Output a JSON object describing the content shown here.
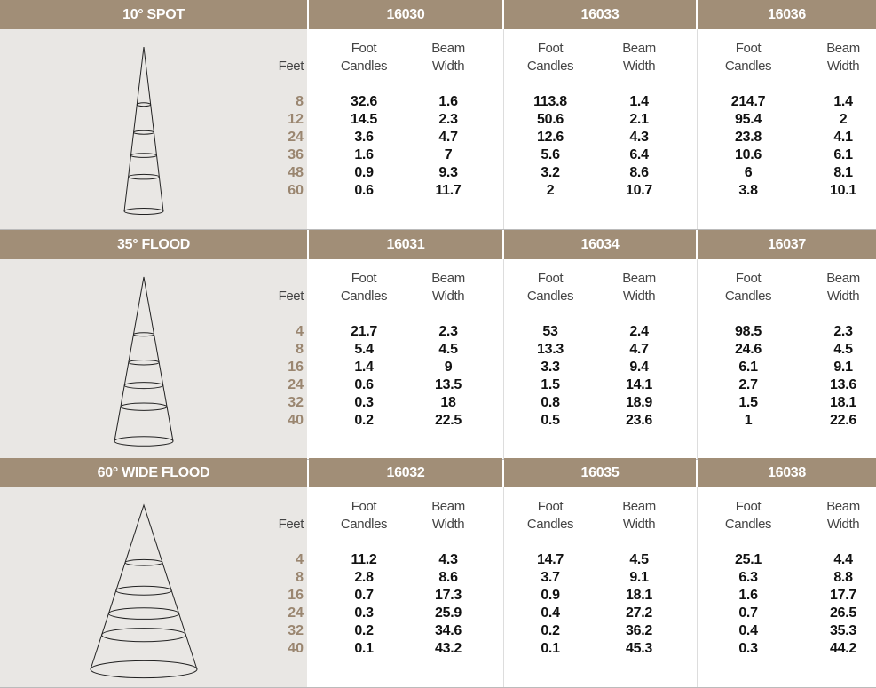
{
  "sections": [
    {
      "title": "10° SPOT",
      "feet_label": "Feet",
      "feet": [
        8,
        12,
        24,
        36,
        48,
        60
      ],
      "products": [
        {
          "model": "16030",
          "headers": [
            "Foot Candles",
            "Beam Width"
          ],
          "foot_candles": [
            32.6,
            14.5,
            3.6,
            1.6,
            0.9,
            0.6
          ],
          "beam_width": [
            1.6,
            2.3,
            4.7,
            7,
            9.3,
            11.7
          ]
        },
        {
          "model": "16033",
          "headers": [
            "Foot Candles",
            "Beam Width"
          ],
          "foot_candles": [
            113.8,
            50.6,
            12.6,
            5.6,
            3.2,
            2
          ],
          "beam_width": [
            1.4,
            2.1,
            4.3,
            6.4,
            8.6,
            10.7
          ]
        },
        {
          "model": "16036",
          "headers": [
            "Foot Candles",
            "Beam Width"
          ],
          "foot_candles": [
            214.7,
            95.4,
            23.8,
            10.6,
            6,
            3.8
          ],
          "beam_width": [
            1.4,
            2,
            4.1,
            6.1,
            8.1,
            10.1
          ]
        }
      ]
    },
    {
      "title": "35° FLOOD",
      "feet_label": "Feet",
      "feet": [
        4,
        8,
        16,
        24,
        32,
        40
      ],
      "products": [
        {
          "model": "16031",
          "headers": [
            "Foot Candles",
            "Beam Width"
          ],
          "foot_candles": [
            21.7,
            5.4,
            1.4,
            0.6,
            0.3,
            0.2
          ],
          "beam_width": [
            2.3,
            4.5,
            9,
            13.5,
            18,
            22.5
          ]
        },
        {
          "model": "16034",
          "headers": [
            "Foot Candles",
            "Beam Width"
          ],
          "foot_candles": [
            53,
            13.3,
            3.3,
            1.5,
            0.8,
            0.5
          ],
          "beam_width": [
            2.4,
            4.7,
            9.4,
            14.1,
            18.9,
            23.6
          ]
        },
        {
          "model": "16037",
          "headers": [
            "Foot Candles",
            "Beam Width"
          ],
          "foot_candles": [
            98.5,
            24.6,
            6.1,
            2.7,
            1.5,
            1
          ],
          "beam_width": [
            2.3,
            4.5,
            9.1,
            13.6,
            18.1,
            22.6
          ]
        }
      ]
    },
    {
      "title": "60° WIDE FLOOD",
      "feet_label": "Feet",
      "feet": [
        4,
        8,
        16,
        24,
        32,
        40
      ],
      "products": [
        {
          "model": "16032",
          "headers": [
            "Foot Candles",
            "Beam Width"
          ],
          "foot_candles": [
            11.2,
            2.8,
            0.7,
            0.3,
            0.2,
            0.1
          ],
          "beam_width": [
            4.3,
            8.6,
            17.3,
            25.9,
            34.6,
            43.2
          ]
        },
        {
          "model": "16035",
          "headers": [
            "Foot Candles",
            "Beam Width"
          ],
          "foot_candles": [
            14.7,
            3.7,
            0.9,
            0.4,
            0.2,
            0.1
          ],
          "beam_width": [
            4.5,
            9.1,
            18.1,
            27.2,
            36.2,
            45.3
          ]
        },
        {
          "model": "16038",
          "headers": [
            "Foot Candles",
            "Beam Width"
          ],
          "foot_candles": [
            25.1,
            6.3,
            1.6,
            0.7,
            0.4,
            0.3
          ],
          "beam_width": [
            4.4,
            8.8,
            17.7,
            26.5,
            35.3,
            44.2
          ]
        }
      ]
    }
  ]
}
